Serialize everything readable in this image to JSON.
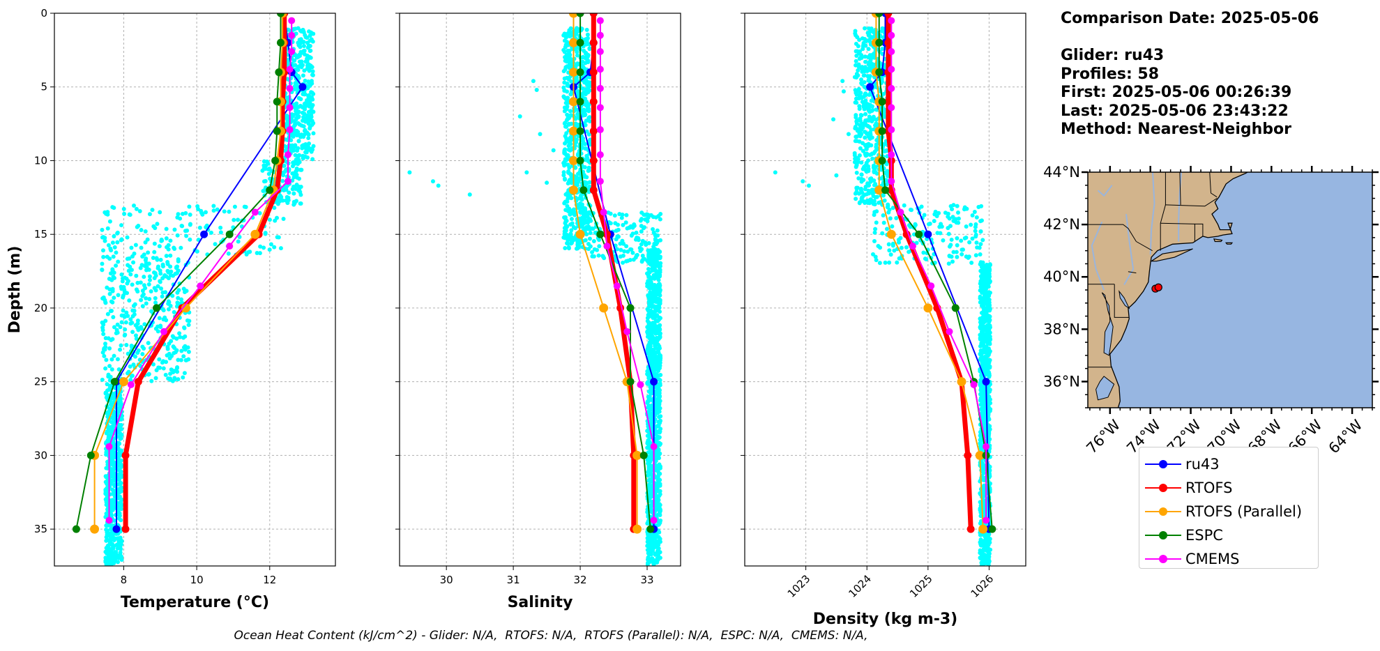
{
  "chart_data": [
    {
      "type": "line",
      "xlabel": "Temperature (°C)",
      "ylabel": "Depth (m)",
      "xlim": [
        6.1,
        13.8
      ],
      "ylim": [
        37.5,
        0
      ],
      "x_ticks": [
        8,
        10,
        12
      ],
      "y_ticks": [
        0,
        5,
        10,
        15,
        20,
        25,
        30,
        35
      ],
      "grid": true,
      "glider_scatter": {
        "name": "ru43 profiles",
        "color": "#00ffff",
        "depth_bands": [
          {
            "z0": 1.0,
            "z1": 10.0,
            "x0": 12.4,
            "x1": 13.2
          },
          {
            "z0": 10.0,
            "z1": 13.0,
            "x0": 11.8,
            "x1": 12.9
          },
          {
            "z0": 13.0,
            "z1": 16.5,
            "x0": 7.4,
            "x1": 12.4
          },
          {
            "z0": 16.5,
            "z1": 25.0,
            "x0": 7.4,
            "x1": 9.8
          },
          {
            "z0": 25.0,
            "z1": 37.5,
            "x0": 7.5,
            "x1": 7.95
          }
        ]
      },
      "series": [
        {
          "name": "ru43",
          "color": "#0000ff",
          "depth": [
            0,
            2,
            4,
            5,
            15,
            25,
            35
          ],
          "values": [
            12.4,
            12.5,
            12.6,
            12.9,
            10.2,
            7.8,
            7.8
          ]
        },
        {
          "name": "RTOFS",
          "color": "#ff0000",
          "depth": [
            0,
            2,
            4,
            6,
            8,
            10,
            12,
            15,
            20,
            25,
            30,
            35
          ],
          "values": [
            12.4,
            12.4,
            12.4,
            12.35,
            12.35,
            12.3,
            12.2,
            11.7,
            9.6,
            8.4,
            8.05,
            8.05
          ]
        },
        {
          "name": "RTOFS (Parallel)",
          "color": "#ffa500",
          "depth": [
            0,
            2,
            4,
            6,
            8,
            10,
            12,
            15,
            20,
            25,
            30,
            35
          ],
          "values": [
            12.35,
            12.35,
            12.3,
            12.3,
            12.3,
            12.2,
            12.1,
            11.6,
            9.7,
            8.0,
            7.2,
            7.2
          ]
        },
        {
          "name": "ESPC",
          "color": "#008000",
          "depth": [
            0,
            2,
            4,
            6,
            8,
            10,
            12,
            15,
            20,
            25,
            30,
            35
          ],
          "values": [
            12.3,
            12.3,
            12.25,
            12.2,
            12.2,
            12.15,
            12.0,
            10.9,
            8.9,
            7.75,
            7.1,
            6.7
          ]
        },
        {
          "name": "CMEMS",
          "color": "#ff00ff",
          "depth": [
            0.5,
            1.5,
            2.6,
            3.8,
            5.1,
            6.4,
            7.9,
            9.6,
            11.4,
            13.5,
            15.8,
            18.5,
            21.6,
            25.2,
            29.4,
            34.4
          ],
          "values": [
            12.6,
            12.6,
            12.6,
            12.55,
            12.55,
            12.55,
            12.55,
            12.5,
            12.5,
            11.6,
            10.9,
            10.1,
            9.1,
            8.2,
            7.6,
            7.6
          ]
        }
      ]
    },
    {
      "type": "line",
      "xlabel": "Salinity",
      "xlim": [
        29.3,
        33.5
      ],
      "ylim": [
        37.5,
        0
      ],
      "x_ticks": [
        30,
        31,
        32,
        33
      ],
      "grid": true,
      "glider_scatter": {
        "color": "#00ffff",
        "depth_bands": [
          {
            "z0": 1.0,
            "z1": 16.0,
            "x0": 31.75,
            "x1": 32.15
          },
          {
            "z0": 13.5,
            "z1": 17.0,
            "x0": 32.15,
            "x1": 33.2
          },
          {
            "z0": 16.0,
            "z1": 37.5,
            "x0": 33.0,
            "x1": 33.2
          }
        ],
        "outliers": [
          [
            29.45,
            10.8
          ],
          [
            29.8,
            11.4
          ],
          [
            29.88,
            11.7
          ],
          [
            30.35,
            12.3
          ],
          [
            31.3,
            4.6
          ],
          [
            31.35,
            5.2
          ],
          [
            31.1,
            7.0
          ],
          [
            31.4,
            8.2
          ],
          [
            31.6,
            9.3
          ],
          [
            31.2,
            10.8
          ],
          [
            31.5,
            11.5
          ]
        ]
      },
      "series": [
        {
          "name": "ru43",
          "color": "#0000ff",
          "depth": [
            0,
            2,
            4,
            5,
            15,
            25,
            35
          ],
          "values": [
            32.2,
            32.2,
            32.15,
            31.9,
            32.45,
            33.1,
            33.1
          ]
        },
        {
          "name": "RTOFS",
          "color": "#ff0000",
          "depth": [
            0,
            2,
            4,
            6,
            8,
            10,
            12,
            15,
            20,
            25,
            30,
            35
          ],
          "values": [
            32.2,
            32.2,
            32.2,
            32.2,
            32.2,
            32.2,
            32.2,
            32.4,
            32.6,
            32.75,
            32.8,
            32.8
          ]
        },
        {
          "name": "RTOFS (Parallel)",
          "color": "#ffa500",
          "depth": [
            0,
            2,
            4,
            6,
            8,
            10,
            12,
            15,
            20,
            25,
            30,
            35
          ],
          "values": [
            31.9,
            31.9,
            31.9,
            31.9,
            31.9,
            31.9,
            31.9,
            32.0,
            32.35,
            32.7,
            32.85,
            32.85
          ]
        },
        {
          "name": "ESPC",
          "color": "#008000",
          "depth": [
            0,
            2,
            4,
            6,
            8,
            10,
            12,
            15,
            20,
            25,
            30,
            35
          ],
          "values": [
            32.0,
            32.0,
            32.0,
            32.0,
            32.0,
            32.0,
            32.05,
            32.3,
            32.75,
            32.75,
            32.95,
            33.05
          ]
        },
        {
          "name": "CMEMS",
          "color": "#ff00ff",
          "depth": [
            0.5,
            1.5,
            2.6,
            3.8,
            5.1,
            6.4,
            7.9,
            9.6,
            11.4,
            13.5,
            15.8,
            18.5,
            21.6,
            25.2,
            29.4,
            34.4
          ],
          "values": [
            32.3,
            32.3,
            32.3,
            32.3,
            32.3,
            32.3,
            32.3,
            32.3,
            32.3,
            32.35,
            32.4,
            32.55,
            32.7,
            32.9,
            33.1,
            33.1
          ]
        }
      ]
    },
    {
      "type": "line",
      "xlabel": "Density (kg m-3)",
      "xlim": [
        1022.0,
        1026.6
      ],
      "ylim": [
        37.5,
        0
      ],
      "x_ticks": [
        1023,
        1024,
        1025,
        1026
      ],
      "grid": true,
      "glider_scatter": {
        "color": "#00ffff",
        "depth_bands": [
          {
            "z0": 1.0,
            "z1": 13.0,
            "x0": 1023.8,
            "x1": 1024.35
          },
          {
            "z0": 13.0,
            "z1": 17.0,
            "x0": 1024.1,
            "x1": 1025.9
          },
          {
            "z0": 17.0,
            "z1": 37.5,
            "x0": 1025.85,
            "x1": 1026.02
          }
        ],
        "outliers": [
          [
            1022.5,
            10.8
          ],
          [
            1022.95,
            11.4
          ],
          [
            1023.05,
            11.7
          ],
          [
            1023.6,
            4.6
          ],
          [
            1023.62,
            5.3
          ],
          [
            1023.45,
            7.2
          ],
          [
            1023.7,
            8.2
          ],
          [
            1023.8,
            9.5
          ],
          [
            1023.5,
            11.0
          ]
        ]
      },
      "series": [
        {
          "name": "ru43",
          "color": "#0000ff",
          "depth": [
            0,
            2,
            4,
            5,
            15,
            25,
            35
          ],
          "values": [
            1024.3,
            1024.3,
            1024.25,
            1024.05,
            1025.0,
            1025.95,
            1026.0
          ]
        },
        {
          "name": "RTOFS",
          "color": "#ff0000",
          "depth": [
            0,
            2,
            4,
            6,
            8,
            10,
            12,
            15,
            20,
            25,
            30,
            35
          ],
          "values": [
            1024.35,
            1024.35,
            1024.35,
            1024.35,
            1024.35,
            1024.4,
            1024.4,
            1024.65,
            1025.15,
            1025.55,
            1025.65,
            1025.7
          ]
        },
        {
          "name": "RTOFS (Parallel)",
          "color": "#ffa500",
          "depth": [
            0,
            2,
            4,
            6,
            8,
            10,
            12,
            15,
            20,
            25,
            30,
            35
          ],
          "values": [
            1024.15,
            1024.15,
            1024.15,
            1024.2,
            1024.2,
            1024.2,
            1024.2,
            1024.4,
            1025.0,
            1025.55,
            1025.85,
            1025.9
          ]
        },
        {
          "name": "ESPC",
          "color": "#008000",
          "depth": [
            0,
            2,
            4,
            6,
            8,
            10,
            12,
            15,
            20,
            25,
            30,
            35
          ],
          "values": [
            1024.2,
            1024.2,
            1024.2,
            1024.25,
            1024.25,
            1024.25,
            1024.3,
            1024.85,
            1025.45,
            1025.75,
            1025.95,
            1026.05
          ]
        },
        {
          "name": "CMEMS",
          "color": "#ff00ff",
          "depth": [
            0.5,
            1.5,
            2.6,
            3.8,
            5.1,
            6.4,
            7.9,
            9.6,
            11.4,
            13.5,
            15.8,
            18.5,
            21.6,
            25.2,
            29.4,
            34.4
          ],
          "values": [
            1024.4,
            1024.4,
            1024.4,
            1024.4,
            1024.4,
            1024.4,
            1024.4,
            1024.4,
            1024.4,
            1024.55,
            1024.75,
            1025.05,
            1025.35,
            1025.75,
            1025.95,
            1025.95
          ]
        }
      ]
    },
    {
      "type": "map",
      "lon_range": [
        -77.1,
        -63.0
      ],
      "lat_range": [
        35.0,
        44.0
      ],
      "lon_ticks": [
        "76°W",
        "74°W",
        "72°W",
        "70°W",
        "68°W",
        "66°W",
        "64°W"
      ],
      "lat_ticks": [
        "36°N",
        "38°N",
        "40°N",
        "42°N",
        "44°N"
      ],
      "land_color": "#d2b48c",
      "ocean_color": "#97b6e1",
      "glider_track": {
        "color": "#ff0000",
        "lon": [
          -73.75,
          -73.6
        ],
        "lat": [
          39.55,
          39.6
        ]
      }
    }
  ],
  "info": {
    "comparison": "Comparison Date: 2025-05-06",
    "glider": "Glider: ru43",
    "profiles": "Profiles: 58",
    "first": "First: 2025-05-06 00:26:39",
    "last": "Last: 2025-05-06 23:43:22",
    "method": "Method: Nearest-Neighbor"
  },
  "legend": {
    "items": [
      {
        "label": "ru43",
        "color": "#0000ff",
        "width": 2
      },
      {
        "label": "RTOFS",
        "color": "#ff0000",
        "width": 2
      },
      {
        "label": "RTOFS (Parallel)",
        "color": "#ffa500",
        "width": 2
      },
      {
        "label": "ESPC",
        "color": "#008000",
        "width": 2
      },
      {
        "label": "CMEMS",
        "color": "#ff00ff",
        "width": 2
      }
    ]
  },
  "footer": "Ocean Heat Content (kJ/cm^2) - Glider: N/A,  RTOFS: N/A,  RTOFS (Parallel): N/A,  ESPC: N/A,  CMEMS: N/A,"
}
